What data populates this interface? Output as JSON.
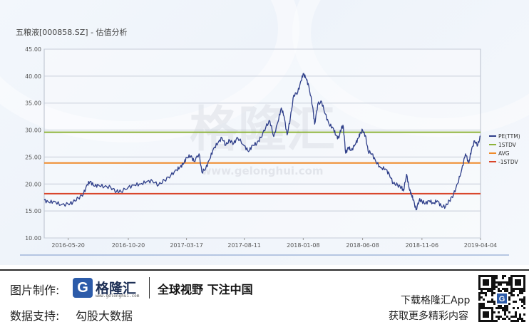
{
  "header": {
    "title": "五粮液[000858.SZ] - 估值分析"
  },
  "watermark": {
    "brand": "格隆汇",
    "url": "www.gelonghui.com"
  },
  "footer": {
    "made_by_label": "图片制作:",
    "brand_name": "格隆汇",
    "brand_url": "www.gelonghui.com",
    "slogan": "全球视野 下注中国",
    "data_support_label": "数据支持:",
    "data_support_value": "勾股大数据",
    "download_text": "下载格隆汇App",
    "more_text": "获取更多精彩内容"
  },
  "colors": {
    "pe": "#2f3f8a",
    "stdv_plus": "#8db33a",
    "avg": "#ef8a2a",
    "stdv_minus": "#d9452a",
    "brand": "#2c5ba9"
  },
  "chart_data": {
    "type": "line",
    "title": "五粮液[000858.SZ] - 估值分析",
    "xlabel": "",
    "ylabel": "",
    "ylim": [
      10,
      45
    ],
    "yticks": [
      "10.00",
      "15.00",
      "20.00",
      "25.00",
      "30.00",
      "35.00",
      "40.00",
      "45.00"
    ],
    "xticks": [
      "2016-05-20",
      "2016-10-20",
      "2017-03-17",
      "2017-08-11",
      "2018-01-08",
      "2018-06-08",
      "2018-11-06",
      "2019-04-04"
    ],
    "x_range": [
      "2016-03-20",
      "2019-04-04"
    ],
    "grid": true,
    "legend_position": "right",
    "series": [
      {
        "name": "PE(TTM)",
        "color": "#2f3f8a",
        "points": [
          [
            "2016-03-20",
            17.0
          ],
          [
            "2016-04-01",
            16.6
          ],
          [
            "2016-04-15",
            16.8
          ],
          [
            "2016-05-01",
            16.1
          ],
          [
            "2016-05-20",
            16.3
          ],
          [
            "2016-06-01",
            16.6
          ],
          [
            "2016-06-15",
            17.4
          ],
          [
            "2016-06-28",
            18.2
          ],
          [
            "2016-07-08",
            19.9
          ],
          [
            "2016-07-15",
            20.5
          ],
          [
            "2016-07-25",
            19.6
          ],
          [
            "2016-08-05",
            19.8
          ],
          [
            "2016-08-20",
            19.5
          ],
          [
            "2016-09-05",
            19.4
          ],
          [
            "2016-09-20",
            18.6
          ],
          [
            "2016-10-01",
            18.6
          ],
          [
            "2016-10-20",
            19.4
          ],
          [
            "2016-11-05",
            19.8
          ],
          [
            "2016-11-20",
            20.0
          ],
          [
            "2016-12-05",
            20.4
          ],
          [
            "2016-12-20",
            20.6
          ],
          [
            "2017-01-05",
            19.8
          ],
          [
            "2017-01-20",
            20.7
          ],
          [
            "2017-02-05",
            21.6
          ],
          [
            "2017-02-20",
            22.6
          ],
          [
            "2017-03-01",
            23.2
          ],
          [
            "2017-03-10",
            23.8
          ],
          [
            "2017-03-17",
            24.9
          ],
          [
            "2017-03-28",
            25.2
          ],
          [
            "2017-04-05",
            24.2
          ],
          [
            "2017-04-18",
            25.6
          ],
          [
            "2017-04-25",
            22.2
          ],
          [
            "2017-05-05",
            22.9
          ],
          [
            "2017-05-15",
            24.6
          ],
          [
            "2017-05-25",
            26.6
          ],
          [
            "2017-06-05",
            27.6
          ],
          [
            "2017-06-15",
            28.6
          ],
          [
            "2017-06-25",
            27.2
          ],
          [
            "2017-07-05",
            28.1
          ],
          [
            "2017-07-15",
            27.5
          ],
          [
            "2017-07-25",
            28.6
          ],
          [
            "2017-08-11",
            27.1
          ],
          [
            "2017-08-22",
            26.0
          ],
          [
            "2017-09-01",
            27.2
          ],
          [
            "2017-09-12",
            27.5
          ],
          [
            "2017-09-22",
            28.6
          ],
          [
            "2017-10-05",
            30.6
          ],
          [
            "2017-10-15",
            31.7
          ],
          [
            "2017-10-25",
            28.8
          ],
          [
            "2017-11-05",
            31.6
          ],
          [
            "2017-11-13",
            34.1
          ],
          [
            "2017-11-20",
            32.6
          ],
          [
            "2017-11-28",
            29.1
          ],
          [
            "2017-12-06",
            32.1
          ],
          [
            "2017-12-15",
            36.5
          ],
          [
            "2017-12-25",
            37.0
          ],
          [
            "2018-01-03",
            39.2
          ],
          [
            "2018-01-08",
            40.5
          ],
          [
            "2018-01-15",
            39.6
          ],
          [
            "2018-01-22",
            38.2
          ],
          [
            "2018-02-01",
            34.3
          ],
          [
            "2018-02-06",
            31.1
          ],
          [
            "2018-02-14",
            34.8
          ],
          [
            "2018-02-24",
            35.2
          ],
          [
            "2018-03-05",
            33.0
          ],
          [
            "2018-03-15",
            31.0
          ],
          [
            "2018-03-25",
            30.4
          ],
          [
            "2018-04-01",
            29.0
          ],
          [
            "2018-04-08",
            28.5
          ],
          [
            "2018-04-15",
            30.4
          ],
          [
            "2018-04-20",
            30.6
          ],
          [
            "2018-04-26",
            25.7
          ],
          [
            "2018-05-03",
            26.8
          ],
          [
            "2018-05-10",
            26.2
          ],
          [
            "2018-05-20",
            27.3
          ],
          [
            "2018-05-28",
            28.5
          ],
          [
            "2018-06-01",
            29.2
          ],
          [
            "2018-06-08",
            30.0
          ],
          [
            "2018-06-15",
            29.0
          ],
          [
            "2018-06-22",
            26.1
          ],
          [
            "2018-07-02",
            25.6
          ],
          [
            "2018-07-12",
            24.1
          ],
          [
            "2018-07-24",
            23.0
          ],
          [
            "2018-08-05",
            22.8
          ],
          [
            "2018-08-15",
            21.8
          ],
          [
            "2018-08-25",
            20.1
          ],
          [
            "2018-09-05",
            19.8
          ],
          [
            "2018-09-15",
            19.4
          ],
          [
            "2018-09-20",
            18.7
          ],
          [
            "2018-09-28",
            21.8
          ],
          [
            "2018-10-05",
            19.0
          ],
          [
            "2018-10-10",
            18.1
          ],
          [
            "2018-10-15",
            17.1
          ],
          [
            "2018-10-22",
            15.2
          ],
          [
            "2018-10-30",
            17.0
          ],
          [
            "2018-11-06",
            16.8
          ],
          [
            "2018-11-15",
            16.4
          ],
          [
            "2018-11-25",
            16.9
          ],
          [
            "2018-12-05",
            16.4
          ],
          [
            "2018-12-15",
            16.9
          ],
          [
            "2018-12-25",
            15.9
          ],
          [
            "2019-01-05",
            15.8
          ],
          [
            "2019-01-15",
            16.9
          ],
          [
            "2019-01-25",
            18.0
          ],
          [
            "2019-02-05",
            20.1
          ],
          [
            "2019-02-15",
            22.6
          ],
          [
            "2019-02-25",
            25.6
          ],
          [
            "2019-03-05",
            23.9
          ],
          [
            "2019-03-12",
            26.3
          ],
          [
            "2019-03-20",
            28.0
          ],
          [
            "2019-03-28",
            27.2
          ],
          [
            "2019-04-04",
            28.9
          ]
        ]
      },
      {
        "name": "1STDV",
        "color": "#8db33a",
        "values": [
          29.6
        ]
      },
      {
        "name": "AVG",
        "color": "#ef8a2a",
        "values": [
          23.9
        ]
      },
      {
        "name": "-1STDV",
        "color": "#d9452a",
        "values": [
          18.2
        ]
      }
    ]
  }
}
